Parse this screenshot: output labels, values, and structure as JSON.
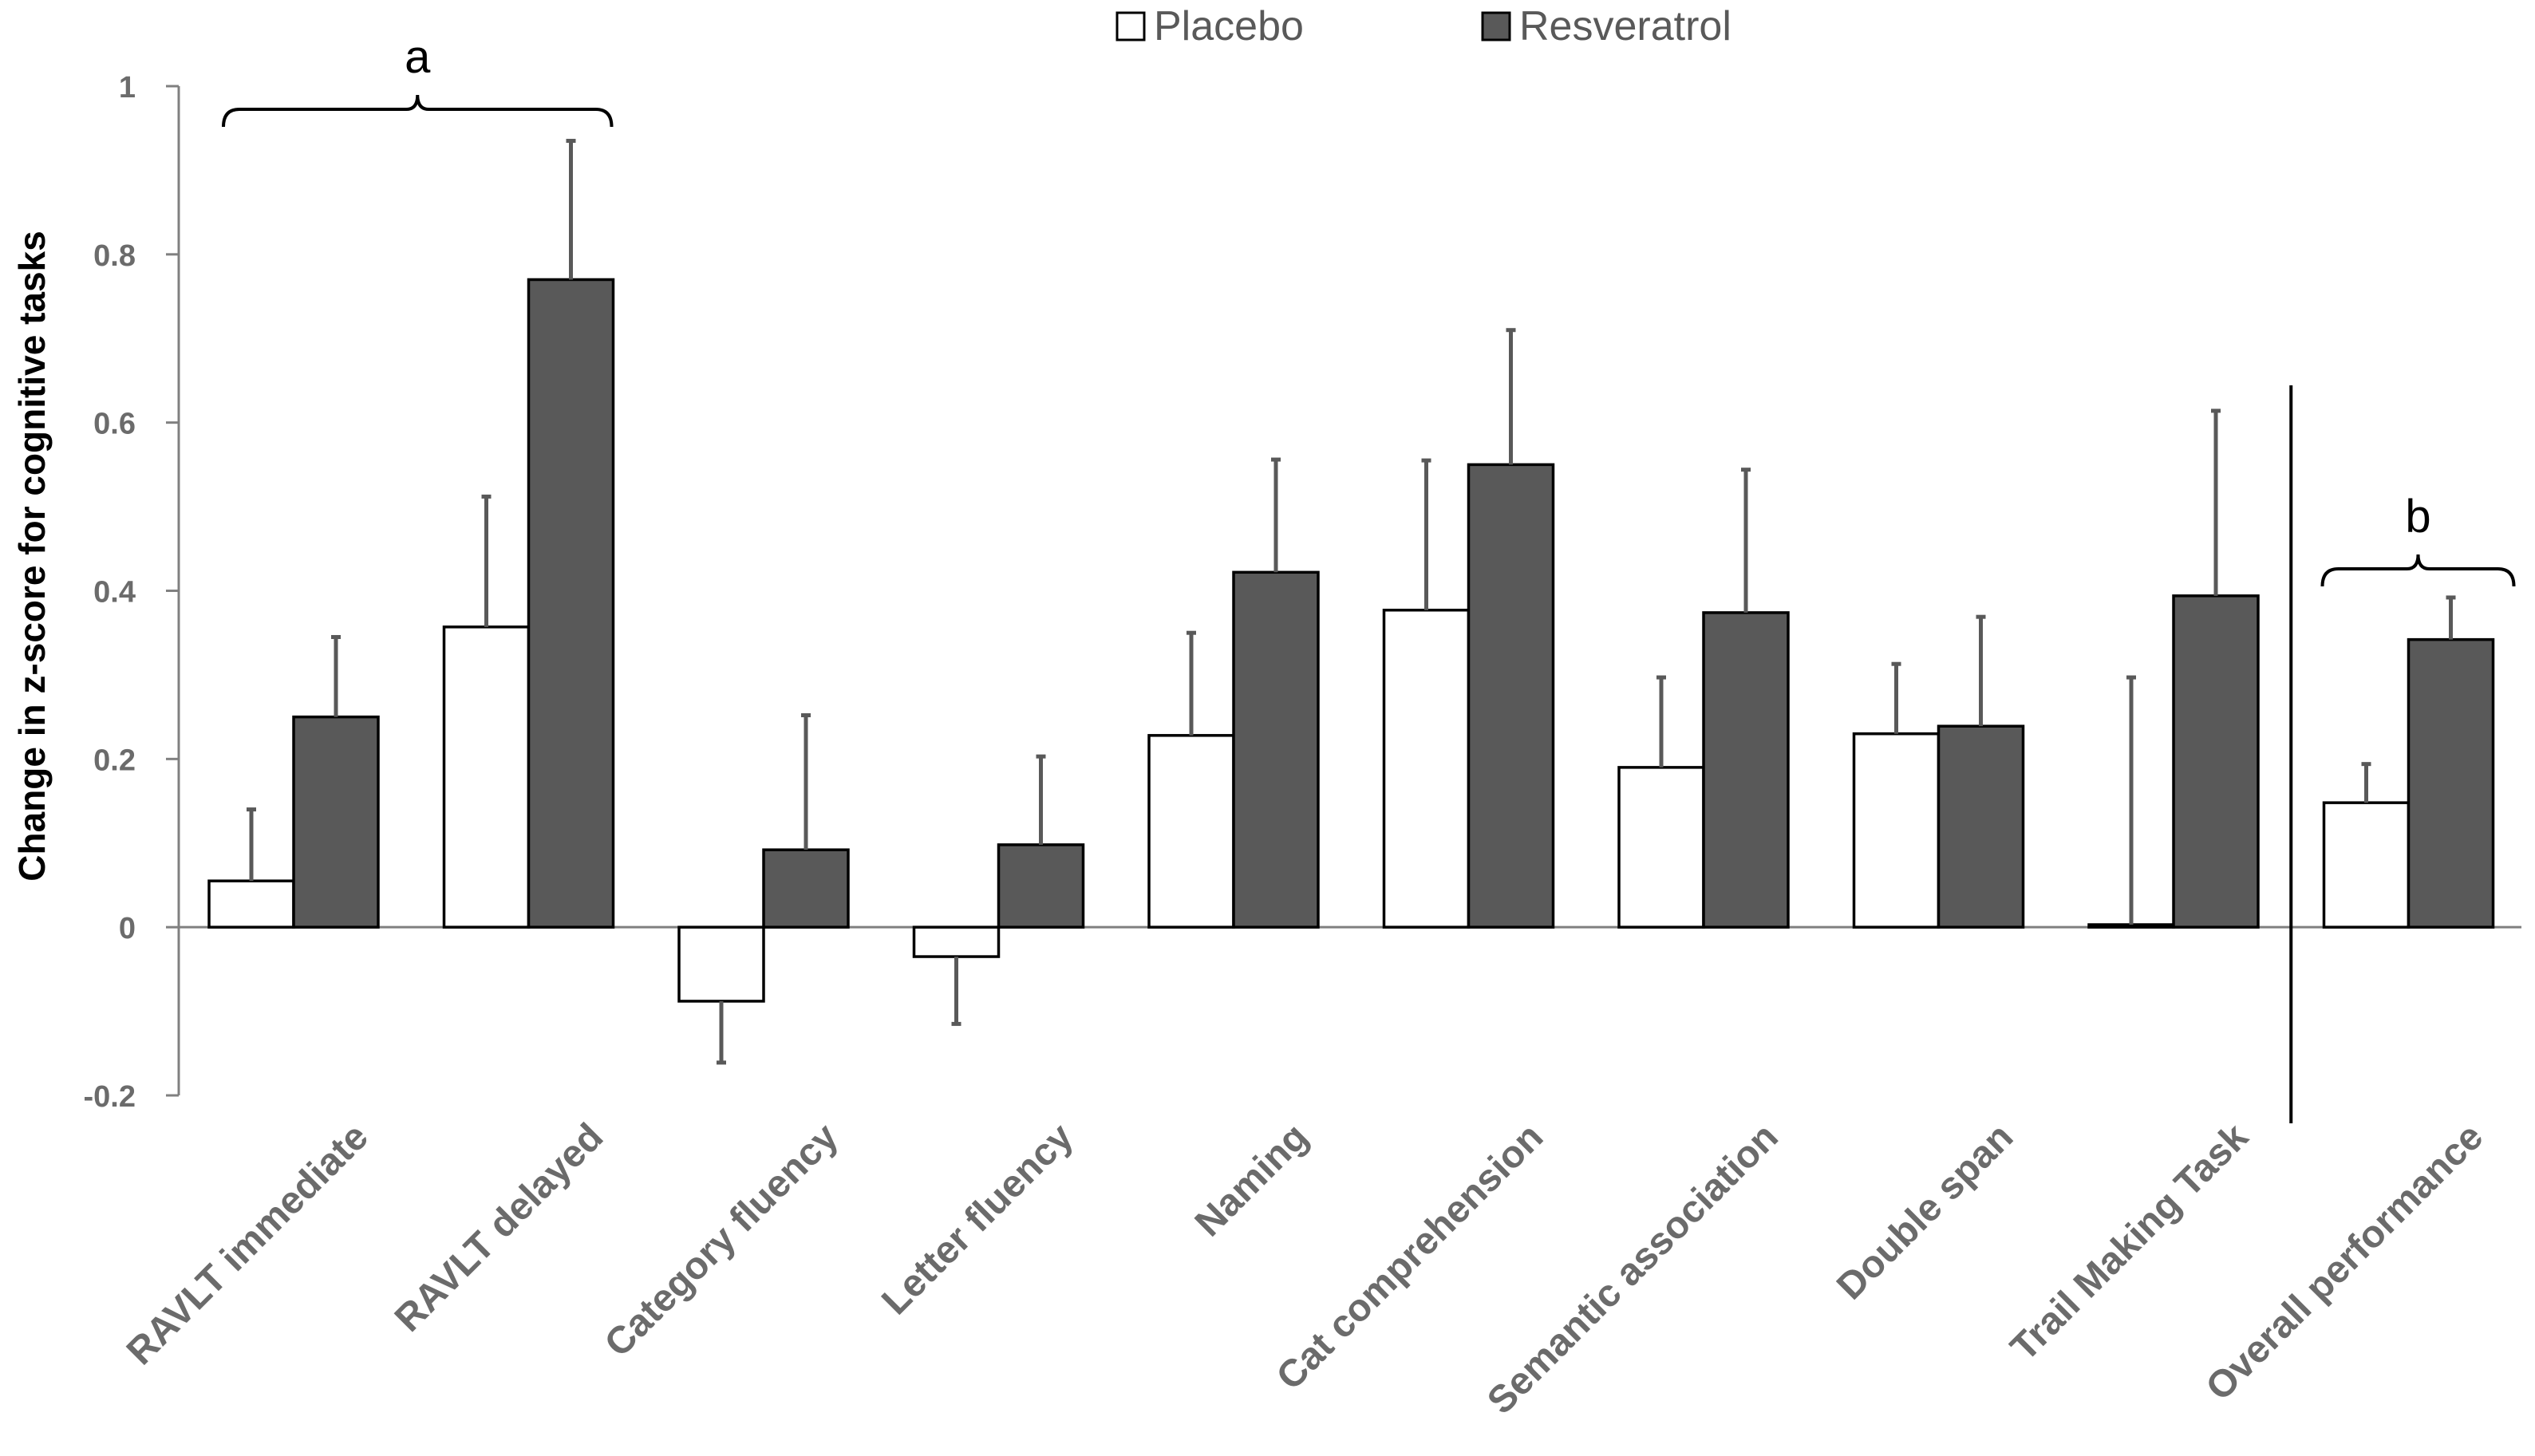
{
  "chart_data": {
    "type": "bar",
    "title": "",
    "xlabel": "",
    "ylabel": "Change in z-score for cognitive tasks",
    "ylim": [
      -0.2,
      1
    ],
    "yticks": [
      -0.2,
      0,
      0.2,
      0.4,
      0.6,
      0.8,
      1
    ],
    "ytick_labels": [
      "-0.2",
      "0",
      "0.2",
      "0.4",
      "0.6",
      "0.8",
      "1"
    ],
    "grid": false,
    "legend_position": "top-center",
    "categories": [
      "RAVLT immediate",
      "RAVLT delayed",
      "Category fluency",
      "Letter fluency",
      "Naming",
      "Cat comprehension",
      "Semantic association",
      "Double span",
      "Trail Making Task",
      "Overall performance"
    ],
    "series": [
      {
        "name": "Placebo",
        "color": "#ffffff",
        "values": [
          0.055,
          0.357,
          -0.088,
          -0.035,
          0.228,
          0.377,
          0.19,
          0.23,
          0.003,
          0.148
        ],
        "errors": [
          0.085,
          0.155,
          0.073,
          0.08,
          0.122,
          0.178,
          0.107,
          0.083,
          0.294,
          0.046
        ]
      },
      {
        "name": "Resveratrol",
        "color": "#595959",
        "values": [
          0.25,
          0.77,
          0.092,
          0.098,
          0.422,
          0.55,
          0.374,
          0.239,
          0.394,
          0.342
        ],
        "errors": [
          0.095,
          0.165,
          0.16,
          0.105,
          0.134,
          0.16,
          0.17,
          0.13,
          0.22,
          0.05
        ]
      }
    ],
    "annotations": [
      {
        "label": "a",
        "from_category": "RAVLT immediate",
        "to_category": "RAVLT delayed"
      },
      {
        "label": "b",
        "from_category": "Overall performance",
        "to_category": "Overall performance"
      }
    ],
    "separator_before_category": "Overall performance"
  }
}
